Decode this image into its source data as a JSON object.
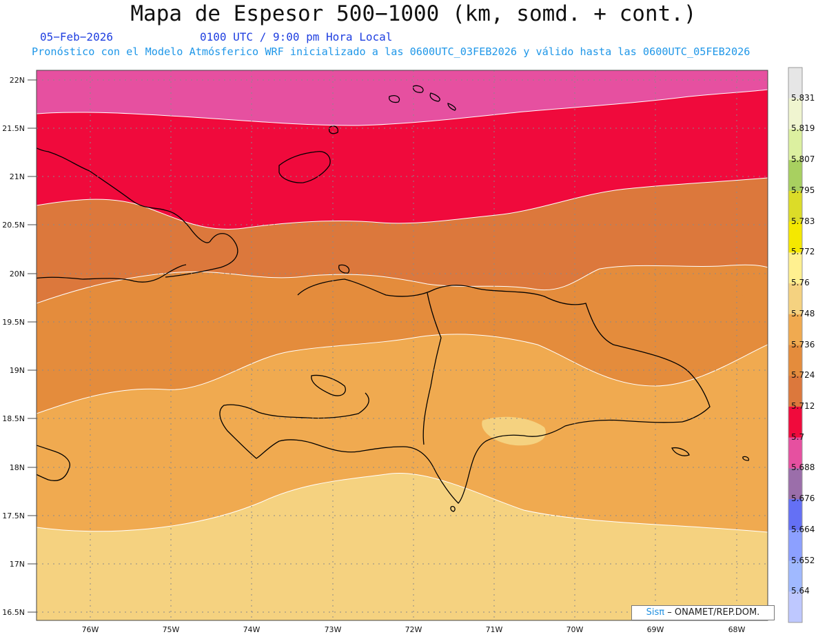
{
  "header": {
    "title": "Mapa de Espesor 500−1000 (km, somd. + cont.)",
    "date": "05−Feb−2026",
    "time": "0100 UTC / 9:00 pm Hora Local",
    "forecast": "Pronóstico con el Modelo Atmósferico WRF inicializado a las 0600UTC_03FEB2026 y válido hasta las  0600UTC_05FEB2026"
  },
  "map": {
    "lat_labels": [
      "22N",
      "21.5N",
      "21N",
      "20.5N",
      "20N",
      "19.5N",
      "19N",
      "18.5N",
      "18N",
      "17.5N",
      "17N",
      "16.5N"
    ],
    "lon_labels": [
      "76W",
      "75W",
      "74W",
      "73W",
      "72W",
      "71W",
      "70W",
      "69W",
      "68W"
    ]
  },
  "colorbar": {
    "labels": [
      "5.831",
      "5.819",
      "5.807",
      "5.795",
      "5.783",
      "5.772",
      "5.76",
      "5.748",
      "5.736",
      "5.724",
      "5.712",
      "5.7",
      "5.688",
      "5.676",
      "5.664",
      "5.652",
      "5.64"
    ],
    "colors": [
      "#e6e6e6",
      "#f0f5d0",
      "#dcf0a0",
      "#a8d060",
      "#dcdc28",
      "#f5e800",
      "#fff090",
      "#f5d280",
      "#f0aa50",
      "#e48c3c",
      "#dc783c",
      "#f00a3c",
      "#e650a0",
      "#9b6eaa",
      "#6470f5",
      "#8ca0ff",
      "#a0b9ff",
      "#bec8ff"
    ]
  },
  "credit": {
    "brand": "Sisπ",
    "rest": "– ONAMET/REP.DOM."
  }
}
